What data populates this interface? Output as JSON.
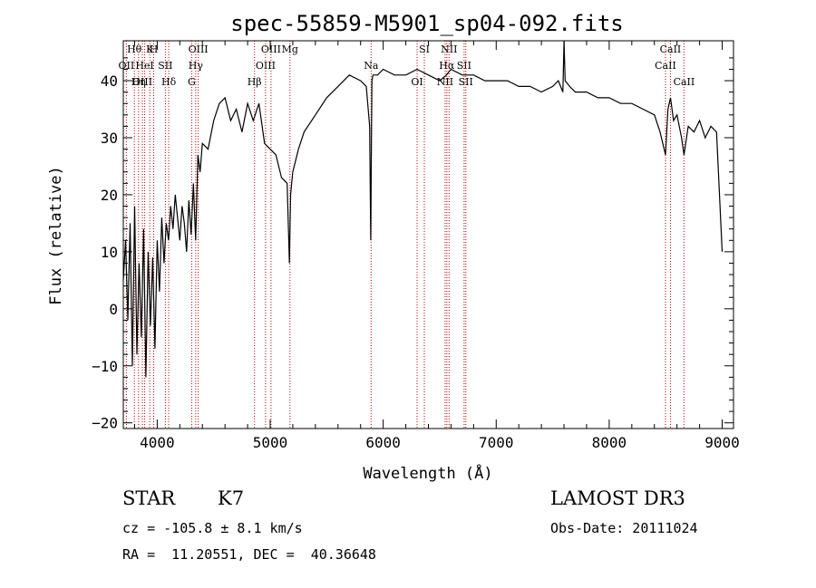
{
  "chart_data": {
    "type": "line",
    "title": "spec-55859-M5901_sp04-092.fits",
    "xlabel": "Wavelength (Å)",
    "ylabel": "Flux (relative)",
    "xlim": [
      3700,
      9100
    ],
    "ylim": [
      -21,
      47
    ],
    "xticks": [
      4000,
      5000,
      6000,
      7000,
      8000,
      9000
    ],
    "yticks": [
      -20,
      -10,
      0,
      10,
      20,
      30,
      40
    ],
    "series": [
      {
        "name": "flux",
        "x": [
          3700,
          3720,
          3740,
          3760,
          3780,
          3800,
          3820,
          3840,
          3860,
          3880,
          3900,
          3920,
          3940,
          3960,
          3980,
          4000,
          4020,
          4040,
          4060,
          4080,
          4100,
          4120,
          4140,
          4160,
          4180,
          4200,
          4220,
          4240,
          4260,
          4280,
          4300,
          4320,
          4340,
          4360,
          4380,
          4400,
          4450,
          4500,
          4550,
          4600,
          4650,
          4700,
          4750,
          4800,
          4850,
          4900,
          4950,
          5000,
          5050,
          5100,
          5150,
          5170,
          5180,
          5200,
          5250,
          5300,
          5400,
          5500,
          5600,
          5700,
          5800,
          5850,
          5880,
          5890,
          5895,
          5900,
          5910,
          5950,
          6000,
          6100,
          6200,
          6300,
          6400,
          6500,
          6560,
          6600,
          6700,
          6800,
          6900,
          7000,
          7100,
          7200,
          7300,
          7400,
          7500,
          7550,
          7590,
          7600,
          7610,
          7650,
          7700,
          7800,
          7900,
          8000,
          8100,
          8200,
          8300,
          8400,
          8450,
          8498,
          8520,
          8542,
          8570,
          8600,
          8640,
          8662,
          8700,
          8750,
          8800,
          8850,
          8900,
          8950,
          9000
        ],
        "values": [
          5,
          12,
          -2,
          15,
          -10,
          18,
          -8,
          8,
          -5,
          14,
          -12,
          10,
          -3,
          9,
          -7,
          12,
          3,
          16,
          8,
          15,
          12,
          18,
          14,
          20,
          16,
          12,
          18,
          15,
          10,
          19,
          13,
          22,
          12,
          27,
          24,
          29,
          28,
          33,
          36,
          37,
          33,
          35,
          31,
          36,
          33,
          36,
          29,
          28,
          27,
          23,
          22,
          8,
          20,
          24,
          28,
          31,
          34,
          37,
          39,
          41,
          40,
          39,
          32,
          12,
          28,
          40,
          41,
          41,
          42,
          41,
          41,
          42,
          41,
          40,
          41,
          42,
          41,
          41,
          40,
          40,
          40,
          39,
          39,
          38,
          39,
          40,
          38,
          47,
          40,
          39,
          38,
          38,
          37,
          37,
          36,
          36,
          35,
          34,
          31,
          27,
          35,
          37,
          33,
          34,
          30,
          27,
          32,
          31,
          33,
          30,
          32,
          31,
          10
        ]
      }
    ],
    "spectral_lines": [
      {
        "label": "Hθ",
        "x": 3798
      },
      {
        "label": "OII",
        "x": 3727
      },
      {
        "label": "OIII",
        "x": 3869
      },
      {
        "label": "K",
        "x": 3934
      },
      {
        "label": "HeI",
        "x": 3889
      },
      {
        "label": "Hη",
        "x": 3835
      },
      {
        "label": "H",
        "x": 3969
      },
      {
        "label": "SII",
        "x": 4072
      },
      {
        "label": "Hδ",
        "x": 4102
      },
      {
        "label": "OIII",
        "x": 4363
      },
      {
        "label": "Hγ",
        "x": 4341
      },
      {
        "label": "G",
        "x": 4305
      },
      {
        "label": "OIII",
        "x": 5007
      },
      {
        "label": "OIII",
        "x": 4959
      },
      {
        "label": "Hβ",
        "x": 4861
      },
      {
        "label": "Mg",
        "x": 5175
      },
      {
        "label": "Na",
        "x": 5893
      },
      {
        "label": "OI",
        "x": 6300
      },
      {
        "label": "SI",
        "x": 6364
      },
      {
        "label": "Hα",
        "x": 6563
      },
      {
        "label": "NII",
        "x": 6548
      },
      {
        "label": "NII",
        "x": 6583
      },
      {
        "label": "SII",
        "x": 6716
      },
      {
        "label": "SII",
        "x": 6731
      },
      {
        "label": "CaII",
        "x": 8542
      },
      {
        "label": "CaII",
        "x": 8498
      },
      {
        "label": "CaII",
        "x": 8662
      }
    ]
  },
  "info": {
    "object_class": "STAR",
    "subclass": "K7",
    "survey": "LAMOST DR3",
    "redshift_line": "cz = -105.8 ± 8.1 km/s",
    "obs_date_line": "Obs-Date: 20111024",
    "coord_line": "RA =  11.20551, DEC =  40.36648"
  },
  "colors": {
    "line": "#000000",
    "marker_line": "#c00000",
    "background": "#ffffff"
  }
}
